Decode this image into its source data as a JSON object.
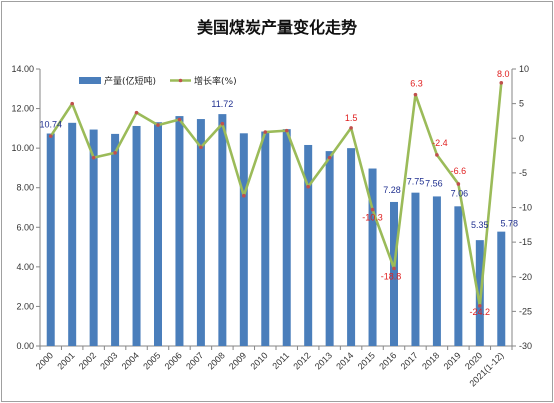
{
  "chart_data": {
    "type": "bar",
    "title": "美国煤炭产量变化走势",
    "categories": [
      "2000",
      "2001",
      "2002",
      "2003",
      "2004",
      "2005",
      "2006",
      "2007",
      "2008",
      "2009",
      "2010",
      "2011",
      "2012",
      "2013",
      "2014",
      "2015",
      "2016",
      "2017",
      "2018",
      "2019",
      "2020",
      "2021(1-12)"
    ],
    "series": [
      {
        "name": "产量(亿短吨)",
        "type": "bar",
        "axis": "left",
        "color": "#4a7ebb",
        "values": [
          10.74,
          11.28,
          10.94,
          10.72,
          11.12,
          11.31,
          11.62,
          11.47,
          11.72,
          10.75,
          10.84,
          10.96,
          10.16,
          9.85,
          10.0,
          8.97,
          7.28,
          7.75,
          7.56,
          7.06,
          5.35,
          5.78
        ]
      },
      {
        "name": "增长率(%)",
        "type": "line",
        "axis": "right",
        "color": "#9bbb59",
        "marker_color": "#c0504d",
        "values": [
          0.3,
          5.0,
          -2.8,
          -2.1,
          3.7,
          1.9,
          2.7,
          -1.3,
          2.1,
          -8.3,
          0.9,
          1.1,
          -7.0,
          -2.8,
          1.5,
          -10.3,
          -18.8,
          6.3,
          -2.4,
          -6.6,
          -24.2,
          8.0
        ]
      }
    ],
    "bar_labels": [
      {
        "index": 0,
        "text": "10.74"
      },
      {
        "index": 8,
        "text": "11.72"
      },
      {
        "index": 16,
        "text": "7.28"
      },
      {
        "index": 17,
        "text": "7.75"
      },
      {
        "index": 18,
        "text": "7.56"
      },
      {
        "index": 19,
        "text": "7.06"
      },
      {
        "index": 20,
        "text": "5.35"
      },
      {
        "index": 21,
        "text": "5.78"
      }
    ],
    "growth_labels": [
      {
        "index": 14,
        "text": "1.5"
      },
      {
        "index": 15,
        "text": "-10.3"
      },
      {
        "index": 16,
        "text": "-18.8"
      },
      {
        "index": 17,
        "text": "6.3"
      },
      {
        "index": 18,
        "text": "-2.4"
      },
      {
        "index": 19,
        "text": "-6.6"
      },
      {
        "index": 20,
        "text": "-24.2"
      },
      {
        "index": 21,
        "text": "8.0"
      }
    ],
    "y_left": {
      "min": 0,
      "max": 14,
      "ticks": [
        "0.00",
        "2.00",
        "4.00",
        "6.00",
        "8.00",
        "10.00",
        "12.00",
        "14.00"
      ]
    },
    "y_right": {
      "min": -30,
      "max": 10,
      "ticks": [
        "-30",
        "-25",
        "-20",
        "-15",
        "-10",
        "-5",
        "0",
        "5",
        "10"
      ]
    },
    "legend_position": "top-center",
    "grid": false
  }
}
